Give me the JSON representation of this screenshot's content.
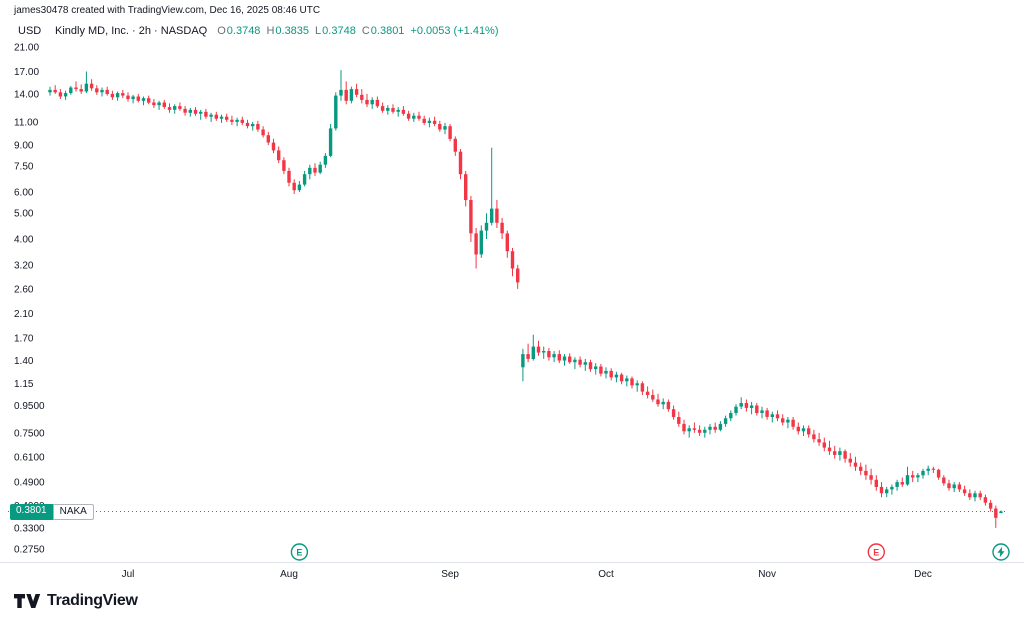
{
  "attribution": "james30478 created with TradingView.com, Dec 16, 2025 08:46 UTC",
  "currency_label": "USD",
  "legend": {
    "series_text": "Kindly MD, Inc. · 2h · NASDAQ",
    "ohlc": [
      {
        "label": "O",
        "value": "0.3748"
      },
      {
        "label": "H",
        "value": "0.3835"
      },
      {
        "label": "L",
        "value": "0.3748"
      },
      {
        "label": "C",
        "value": "0.3801"
      }
    ],
    "change": "+0.0053 (+1.41%)"
  },
  "price_label": {
    "value": "0.3801",
    "ticker": "NAKA"
  },
  "footer_logo": "TradingView",
  "colors": {
    "up": "#089981",
    "down": "#F23645",
    "axis_text": "#131722",
    "price_line": "#089981",
    "separator": "#E0E3EB"
  },
  "chart_data": {
    "type": "candlestick",
    "title": "Kindly MD, Inc.",
    "symbol": "NAKA",
    "interval": "2h",
    "exchange": "NASDAQ",
    "scale": "log",
    "current_price": 0.3801,
    "current_bar": {
      "open": 0.3748,
      "high": 0.3835,
      "low": 0.3748,
      "close": 0.3801,
      "change": 0.0053,
      "change_pct": 1.41
    },
    "y_axis": {
      "top_price": 21.0,
      "bottom_price": 0.275,
      "ticks": [
        {
          "value": 21.0,
          "label": "21.00"
        },
        {
          "value": 17.0,
          "label": "17.00"
        },
        {
          "value": 14.0,
          "label": "14.00"
        },
        {
          "value": 11.0,
          "label": "11.00"
        },
        {
          "value": 9.0,
          "label": "9.00"
        },
        {
          "value": 7.5,
          "label": "7.50"
        },
        {
          "value": 6.0,
          "label": "6.00"
        },
        {
          "value": 5.0,
          "label": "5.00"
        },
        {
          "value": 4.0,
          "label": "4.00"
        },
        {
          "value": 3.2,
          "label": "3.20"
        },
        {
          "value": 2.6,
          "label": "2.60"
        },
        {
          "value": 2.1,
          "label": "2.10"
        },
        {
          "value": 1.7,
          "label": "1.70"
        },
        {
          "value": 1.4,
          "label": "1.40"
        },
        {
          "value": 1.15,
          "label": "1.15"
        },
        {
          "value": 0.95,
          "label": "0.9500"
        },
        {
          "value": 0.75,
          "label": "0.7500"
        },
        {
          "value": 0.61,
          "label": "0.6100"
        },
        {
          "value": 0.49,
          "label": "0.4900"
        },
        {
          "value": 0.4,
          "label": "0.4000"
        },
        {
          "value": 0.33,
          "label": "0.3300"
        },
        {
          "value": 0.275,
          "label": "0.2750"
        }
      ]
    },
    "x_axis": {
      "total_days": 183,
      "months": [
        {
          "label": "Jul",
          "day": 15
        },
        {
          "label": "Aug",
          "day": 46
        },
        {
          "label": "Sep",
          "day": 77
        },
        {
          "label": "Oct",
          "day": 107
        },
        {
          "label": "Nov",
          "day": 138
        },
        {
          "label": "Dec",
          "day": 168
        }
      ]
    },
    "events": [
      {
        "name": "earnings-green",
        "label": "E",
        "color": "#089981",
        "day": 48
      },
      {
        "name": "earnings-red",
        "label": "E",
        "color": "#F23645",
        "day": 159
      },
      {
        "name": "lightning",
        "color": "#089981",
        "day": 183
      }
    ],
    "candles": [
      [
        14.2,
        14.9,
        13.8,
        14.5
      ],
      [
        14.5,
        15.1,
        14.0,
        14.2
      ],
      [
        14.2,
        14.6,
        13.4,
        13.7
      ],
      [
        13.7,
        14.4,
        13.3,
        14.1
      ],
      [
        14.1,
        15.0,
        13.9,
        14.8
      ],
      [
        14.8,
        15.6,
        14.3,
        14.6
      ],
      [
        14.6,
        15.2,
        14.0,
        14.3
      ],
      [
        14.3,
        17.0,
        14.1,
        15.3
      ],
      [
        15.3,
        15.9,
        14.4,
        14.7
      ],
      [
        14.7,
        15.1,
        13.9,
        14.2
      ],
      [
        14.2,
        14.8,
        13.7,
        14.5
      ],
      [
        14.5,
        14.9,
        13.8,
        14.0
      ],
      [
        14.0,
        14.4,
        13.3,
        13.6
      ],
      [
        13.6,
        14.3,
        13.2,
        14.1
      ],
      [
        14.1,
        14.5,
        13.5,
        13.8
      ],
      [
        13.8,
        14.2,
        13.1,
        13.4
      ],
      [
        13.4,
        13.9,
        12.9,
        13.7
      ],
      [
        13.7,
        14.0,
        13.0,
        13.2
      ],
      [
        13.2,
        13.7,
        12.7,
        13.5
      ],
      [
        13.5,
        13.8,
        12.8,
        13.0
      ],
      [
        13.0,
        13.4,
        12.4,
        12.7
      ],
      [
        12.7,
        13.2,
        12.2,
        13.0
      ],
      [
        13.0,
        13.3,
        12.3,
        12.5
      ],
      [
        12.5,
        12.9,
        11.9,
        12.2
      ],
      [
        12.2,
        12.8,
        11.8,
        12.6
      ],
      [
        12.6,
        13.0,
        12.1,
        12.3
      ],
      [
        12.3,
        12.6,
        11.6,
        11.9
      ],
      [
        11.9,
        12.4,
        11.5,
        12.2
      ],
      [
        12.2,
        12.5,
        11.6,
        11.8
      ],
      [
        11.8,
        12.2,
        11.2,
        12.0
      ],
      [
        12.0,
        12.3,
        11.3,
        11.5
      ],
      [
        11.5,
        11.9,
        11.0,
        11.7
      ],
      [
        11.7,
        12.0,
        11.1,
        11.3
      ],
      [
        11.3,
        11.7,
        10.9,
        11.5
      ],
      [
        11.5,
        11.8,
        11.0,
        11.2
      ],
      [
        11.2,
        11.6,
        10.7,
        11.0
      ],
      [
        11.0,
        11.4,
        10.6,
        11.2
      ],
      [
        11.2,
        11.5,
        10.7,
        10.9
      ],
      [
        10.9,
        11.2,
        10.4,
        10.6
      ],
      [
        10.6,
        11.0,
        10.2,
        10.8
      ],
      [
        10.8,
        11.1,
        10.1,
        10.3
      ],
      [
        10.3,
        10.6,
        9.6,
        9.8
      ],
      [
        9.8,
        10.1,
        9.0,
        9.2
      ],
      [
        9.2,
        9.5,
        8.4,
        8.6
      ],
      [
        8.6,
        8.9,
        7.7,
        7.9
      ],
      [
        7.9,
        8.1,
        7.0,
        7.2
      ],
      [
        7.2,
        7.4,
        6.3,
        6.5
      ],
      [
        6.5,
        6.7,
        5.9,
        6.1
      ],
      [
        6.1,
        6.6,
        6.0,
        6.4
      ],
      [
        6.4,
        7.2,
        6.3,
        7.0
      ],
      [
        7.0,
        7.6,
        6.7,
        7.4
      ],
      [
        7.4,
        7.7,
        6.9,
        7.1
      ],
      [
        7.1,
        7.8,
        7.0,
        7.6
      ],
      [
        7.6,
        8.4,
        7.4,
        8.2
      ],
      [
        8.2,
        10.8,
        8.1,
        10.4
      ],
      [
        10.4,
        14.2,
        10.2,
        13.8
      ],
      [
        13.8,
        17.2,
        13.2,
        14.5
      ],
      [
        14.5,
        15.6,
        12.8,
        13.2
      ],
      [
        13.2,
        14.9,
        12.9,
        14.6
      ],
      [
        14.6,
        15.3,
        13.6,
        13.9
      ],
      [
        13.9,
        14.6,
        12.9,
        13.3
      ],
      [
        13.3,
        14.0,
        12.5,
        12.8
      ],
      [
        12.8,
        13.6,
        12.3,
        13.3
      ],
      [
        13.3,
        13.7,
        12.4,
        12.6
      ],
      [
        12.6,
        13.0,
        11.9,
        12.1
      ],
      [
        12.1,
        12.7,
        11.7,
        12.4
      ],
      [
        12.4,
        12.8,
        11.8,
        12.0
      ],
      [
        12.0,
        12.5,
        11.5,
        12.2
      ],
      [
        12.2,
        12.6,
        11.6,
        11.8
      ],
      [
        11.8,
        12.1,
        11.1,
        11.3
      ],
      [
        11.3,
        11.9,
        11.0,
        11.6
      ],
      [
        11.6,
        12.0,
        11.1,
        11.3
      ],
      [
        11.3,
        11.6,
        10.7,
        10.9
      ],
      [
        10.9,
        11.4,
        10.5,
        11.1
      ],
      [
        11.1,
        11.5,
        10.6,
        10.8
      ],
      [
        10.8,
        11.1,
        10.1,
        10.3
      ],
      [
        10.3,
        10.9,
        9.9,
        10.6
      ],
      [
        10.6,
        10.8,
        9.3,
        9.5
      ],
      [
        9.5,
        9.7,
        8.2,
        8.5
      ],
      [
        8.5,
        8.7,
        6.7,
        7.0
      ],
      [
        7.0,
        7.2,
        5.3,
        5.6
      ],
      [
        5.6,
        5.8,
        3.9,
        4.2
      ],
      [
        4.2,
        4.4,
        3.1,
        3.5
      ],
      [
        3.5,
        4.5,
        3.4,
        4.3
      ],
      [
        4.3,
        5.0,
        4.0,
        4.6
      ],
      [
        4.6,
        8.8,
        4.5,
        5.2
      ],
      [
        5.2,
        5.6,
        4.4,
        4.6
      ],
      [
        4.6,
        4.8,
        4.0,
        4.2
      ],
      [
        4.2,
        4.3,
        3.4,
        3.6
      ],
      [
        3.6,
        3.7,
        2.9,
        3.1
      ],
      [
        3.1,
        3.2,
        2.6,
        2.75
      ],
      [
        1.32,
        1.55,
        1.17,
        1.48
      ],
      [
        1.48,
        1.62,
        1.38,
        1.42
      ],
      [
        1.42,
        1.75,
        1.4,
        1.58
      ],
      [
        1.58,
        1.66,
        1.46,
        1.5
      ],
      [
        1.5,
        1.58,
        1.42,
        1.52
      ],
      [
        1.52,
        1.56,
        1.4,
        1.44
      ],
      [
        1.44,
        1.52,
        1.38,
        1.48
      ],
      [
        1.48,
        1.53,
        1.37,
        1.4
      ],
      [
        1.4,
        1.48,
        1.34,
        1.45
      ],
      [
        1.45,
        1.49,
        1.36,
        1.38
      ],
      [
        1.38,
        1.44,
        1.3,
        1.41
      ],
      [
        1.41,
        1.45,
        1.32,
        1.35
      ],
      [
        1.35,
        1.42,
        1.28,
        1.38
      ],
      [
        1.38,
        1.41,
        1.27,
        1.3
      ],
      [
        1.3,
        1.37,
        1.24,
        1.33
      ],
      [
        1.33,
        1.36,
        1.22,
        1.25
      ],
      [
        1.25,
        1.32,
        1.2,
        1.28
      ],
      [
        1.28,
        1.31,
        1.18,
        1.21
      ],
      [
        1.21,
        1.27,
        1.16,
        1.24
      ],
      [
        1.24,
        1.26,
        1.14,
        1.17
      ],
      [
        1.17,
        1.23,
        1.12,
        1.2
      ],
      [
        1.2,
        1.22,
        1.1,
        1.13
      ],
      [
        1.13,
        1.18,
        1.07,
        1.15
      ],
      [
        1.15,
        1.17,
        1.04,
        1.07
      ],
      [
        1.07,
        1.12,
        1.01,
        1.04
      ],
      [
        1.04,
        1.09,
        0.98,
        1.0
      ],
      [
        1.0,
        1.05,
        0.94,
        0.96
      ],
      [
        0.96,
        1.01,
        0.92,
        0.98
      ],
      [
        0.98,
        1.0,
        0.9,
        0.92
      ],
      [
        0.92,
        0.95,
        0.84,
        0.86
      ],
      [
        0.86,
        0.9,
        0.79,
        0.81
      ],
      [
        0.81,
        0.84,
        0.74,
        0.76
      ],
      [
        0.76,
        0.8,
        0.72,
        0.78
      ],
      [
        0.78,
        0.82,
        0.75,
        0.77
      ],
      [
        0.77,
        0.8,
        0.73,
        0.75
      ],
      [
        0.75,
        0.79,
        0.72,
        0.77
      ],
      [
        0.77,
        0.81,
        0.74,
        0.79
      ],
      [
        0.79,
        0.82,
        0.75,
        0.77
      ],
      [
        0.77,
        0.83,
        0.76,
        0.81
      ],
      [
        0.81,
        0.87,
        0.79,
        0.85
      ],
      [
        0.85,
        0.91,
        0.83,
        0.89
      ],
      [
        0.89,
        0.96,
        0.87,
        0.94
      ],
      [
        0.94,
        1.02,
        0.92,
        0.97
      ],
      [
        0.97,
        1.0,
        0.9,
        0.93
      ],
      [
        0.93,
        0.98,
        0.88,
        0.95
      ],
      [
        0.95,
        0.97,
        0.87,
        0.89
      ],
      [
        0.89,
        0.94,
        0.85,
        0.91
      ],
      [
        0.91,
        0.93,
        0.84,
        0.86
      ],
      [
        0.86,
        0.9,
        0.82,
        0.88
      ],
      [
        0.88,
        0.91,
        0.83,
        0.85
      ],
      [
        0.85,
        0.88,
        0.8,
        0.82
      ],
      [
        0.82,
        0.86,
        0.78,
        0.84
      ],
      [
        0.84,
        0.86,
        0.77,
        0.79
      ],
      [
        0.79,
        0.82,
        0.74,
        0.76
      ],
      [
        0.76,
        0.8,
        0.73,
        0.78
      ],
      [
        0.78,
        0.8,
        0.72,
        0.74
      ],
      [
        0.74,
        0.77,
        0.69,
        0.71
      ],
      [
        0.71,
        0.75,
        0.67,
        0.69
      ],
      [
        0.69,
        0.72,
        0.64,
        0.66
      ],
      [
        0.66,
        0.7,
        0.62,
        0.64
      ],
      [
        0.64,
        0.67,
        0.6,
        0.62
      ],
      [
        0.62,
        0.66,
        0.59,
        0.64
      ],
      [
        0.64,
        0.65,
        0.58,
        0.6
      ],
      [
        0.6,
        0.63,
        0.56,
        0.58
      ],
      [
        0.58,
        0.61,
        0.54,
        0.56
      ],
      [
        0.56,
        0.58,
        0.52,
        0.54
      ],
      [
        0.54,
        0.57,
        0.5,
        0.52
      ],
      [
        0.52,
        0.55,
        0.48,
        0.5
      ],
      [
        0.5,
        0.52,
        0.455,
        0.47
      ],
      [
        0.47,
        0.49,
        0.43,
        0.445
      ],
      [
        0.445,
        0.47,
        0.43,
        0.46
      ],
      [
        0.46,
        0.48,
        0.44,
        0.47
      ],
      [
        0.47,
        0.5,
        0.455,
        0.49
      ],
      [
        0.49,
        0.51,
        0.47,
        0.48
      ],
      [
        0.48,
        0.56,
        0.475,
        0.52
      ],
      [
        0.52,
        0.54,
        0.49,
        0.51
      ],
      [
        0.51,
        0.53,
        0.49,
        0.52
      ],
      [
        0.52,
        0.55,
        0.505,
        0.54
      ],
      [
        0.54,
        0.565,
        0.52,
        0.55
      ],
      [
        0.55,
        0.56,
        0.53,
        0.545
      ],
      [
        0.545,
        0.55,
        0.5,
        0.51
      ],
      [
        0.51,
        0.52,
        0.475,
        0.485
      ],
      [
        0.485,
        0.5,
        0.455,
        0.465
      ],
      [
        0.465,
        0.49,
        0.45,
        0.48
      ],
      [
        0.48,
        0.49,
        0.45,
        0.46
      ],
      [
        0.46,
        0.475,
        0.435,
        0.445
      ],
      [
        0.445,
        0.46,
        0.42,
        0.43
      ],
      [
        0.43,
        0.455,
        0.415,
        0.445
      ],
      [
        0.445,
        0.455,
        0.42,
        0.43
      ],
      [
        0.43,
        0.44,
        0.4,
        0.41
      ],
      [
        0.41,
        0.42,
        0.38,
        0.39
      ],
      [
        0.39,
        0.4,
        0.33,
        0.36
      ],
      [
        0.3748,
        0.3835,
        0.3748,
        0.3801
      ]
    ]
  }
}
